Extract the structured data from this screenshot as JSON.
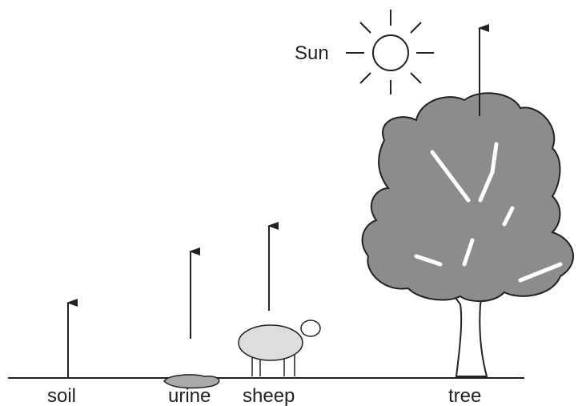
{
  "labels": {
    "sun": "Sun",
    "soil": "soil",
    "urine": "urine",
    "sheep": "sheep",
    "tree": "tree"
  }
}
